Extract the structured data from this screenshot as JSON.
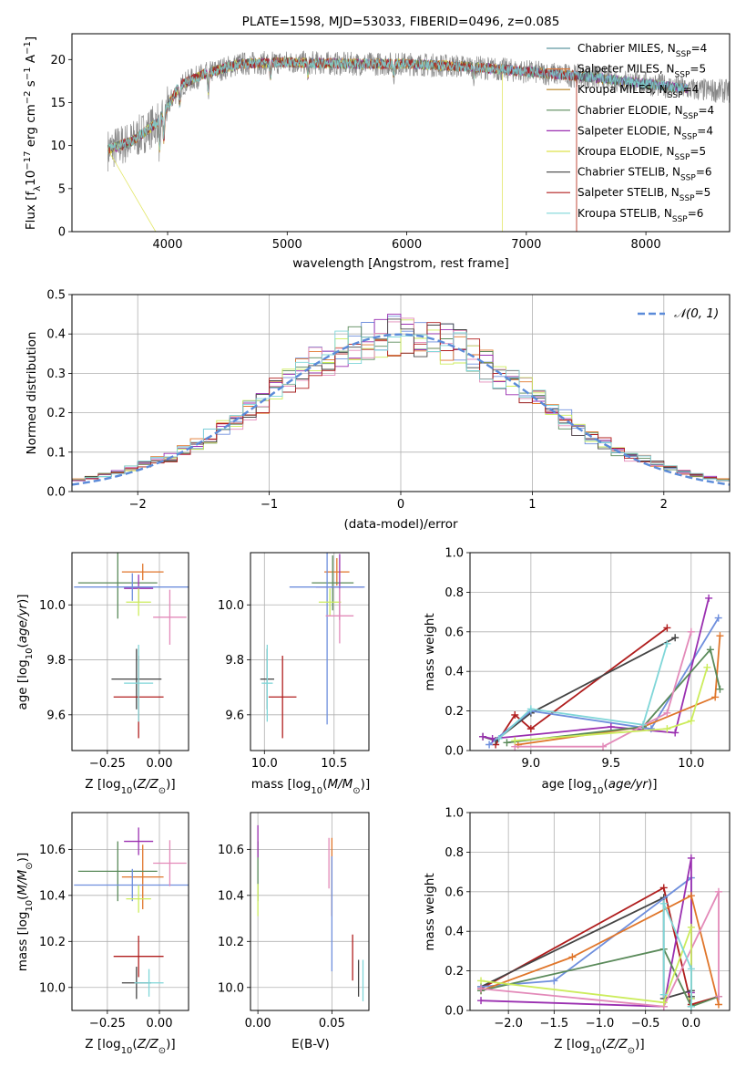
{
  "title": "PLATE=1598, MJD=53033, FIBERID=0496, z=0.085",
  "colors": {
    "chabrier_miles": "#5f97a0",
    "salpeter_miles": "#de7a3b",
    "kroupa_miles": "#b8821d",
    "chabrier_elodie": "#5a8a5a",
    "salpeter_elodie": "#9a2fb0",
    "kroupa_elodie": "#dde24a",
    "chabrier_stelib": "#555555",
    "salpeter_stelib": "#b01e1e",
    "kroupa_stelib": "#7fd6d8",
    "blue": "#6f8fdd",
    "pink": "#e38ab9",
    "orange": "#e0762b",
    "green": "#5a8a5a",
    "purple": "#9a2fb0",
    "yellow": "#ccec5c",
    "dark": "#444444",
    "red": "#b01e1e",
    "cyan": "#7fd6d8",
    "gauss": "#5b8bd9"
  },
  "chart_data": [
    {
      "id": "spectrum",
      "type": "line",
      "title": "PLATE=1598, MJD=53033, FIBERID=0496, z=0.085",
      "xlabel": "wavelength [Angstrom, rest frame]",
      "ylabel": "Flux [f_λ10^-17 erg cm^-2 s^-1 A^-1]",
      "xlim": [
        3200,
        8700
      ],
      "ylim": [
        0,
        23
      ],
      "xticks": [
        "4000",
        "5000",
        "6000",
        "7000",
        "8000"
      ],
      "yticks": [
        "0",
        "5",
        "10",
        "15",
        "20"
      ],
      "legend_position": "upper-right",
      "legend": [
        {
          "label": "Chabrier MILES, N",
          "sub": "SSP",
          "tail": "=4",
          "color": "chabrier_miles"
        },
        {
          "label": "Salpeter MILES, N",
          "sub": "SSP",
          "tail": "=5",
          "color": "salpeter_miles"
        },
        {
          "label": "Kroupa MILES, N",
          "sub": "SSP",
          "tail": "=4",
          "color": "kroupa_miles"
        },
        {
          "label": "Chabrier ELODIE, N",
          "sub": "SSP",
          "tail": "=4",
          "color": "chabrier_elodie"
        },
        {
          "label": "Salpeter ELODIE, N",
          "sub": "SSP",
          "tail": "=4",
          "color": "salpeter_elodie"
        },
        {
          "label": "Kroupa ELODIE, N",
          "sub": "SSP",
          "tail": "=5",
          "color": "kroupa_elodie"
        },
        {
          "label": "Chabrier STELIB, N",
          "sub": "SSP",
          "tail": "=6",
          "color": "chabrier_stelib"
        },
        {
          "label": "Salpeter STELIB, N",
          "sub": "SSP",
          "tail": "=5",
          "color": "salpeter_stelib"
        },
        {
          "label": "Kroupa STELIB, N",
          "sub": "SSP",
          "tail": "=6",
          "color": "kroupa_stelib"
        }
      ],
      "continuum": [
        [
          3500,
          9.5
        ],
        [
          3700,
          10.5
        ],
        [
          3900,
          12.5
        ],
        [
          4000,
          14.5
        ],
        [
          4100,
          17.0
        ],
        [
          4300,
          18.3
        ],
        [
          4600,
          19.5
        ],
        [
          5000,
          19.7
        ],
        [
          5500,
          19.5
        ],
        [
          6000,
          19.5
        ],
        [
          6500,
          19.2
        ],
        [
          7000,
          18.6
        ],
        [
          7500,
          18.0
        ],
        [
          8000,
          17.2
        ],
        [
          8400,
          16.5
        ],
        [
          8700,
          16.3
        ]
      ],
      "data_range": [
        3500,
        8700
      ],
      "model_range": [
        3500,
        8350
      ]
    },
    {
      "id": "residuals",
      "type": "histogram",
      "xlabel": "(data-model)/error",
      "ylabel": "Normed distribution",
      "xlim": [
        -2.5,
        2.5
      ],
      "ylim": [
        0,
        0.5
      ],
      "xticks": [
        "−2",
        "−1",
        "0",
        "1",
        "2"
      ],
      "yticks": [
        "0.0",
        "0.1",
        "0.2",
        "0.3",
        "0.4",
        "0.5"
      ],
      "legend": [
        {
          "label": "𝒩(0, 1)",
          "color": "gauss"
        }
      ],
      "legend_position": "upper-right",
      "bin_width": 0.1,
      "series_colors": [
        "blue",
        "orange",
        "green",
        "purple",
        "yellow",
        "pink",
        "dark",
        "red",
        "cyan"
      ]
    },
    {
      "id": "age_vs_Z",
      "type": "errorbar",
      "xlabel": "Z [log10(Z/Z⊙)]",
      "ylabel": "age [log10(age/yr)]",
      "xlim": [
        -0.42,
        0.14
      ],
      "ylim": [
        9.47,
        10.19
      ],
      "xticks": [
        "−0.25",
        "0.00"
      ],
      "yticks": [
        "9.6",
        "9.8",
        "10.0"
      ],
      "points": [
        {
          "x": -0.08,
          "y": 10.12,
          "xerr": 0.1,
          "yerr": 0.03,
          "color": "orange"
        },
        {
          "x": -0.2,
          "y": 10.08,
          "xerr": 0.19,
          "yerr": 0.13,
          "color": "green"
        },
        {
          "x": -0.1,
          "y": 10.06,
          "xerr": 0.07,
          "yerr": 0.05,
          "color": "purple"
        },
        {
          "x": -0.13,
          "y": 10.065,
          "xerr": 0.28,
          "yerr": 0.05,
          "color": "blue"
        },
        {
          "x": -0.1,
          "y": 10.01,
          "xerr": 0.06,
          "yerr": 0.05,
          "color": "yellow"
        },
        {
          "x": 0.05,
          "y": 9.955,
          "xerr": 0.08,
          "yerr": 0.1,
          "color": "pink"
        },
        {
          "x": -0.11,
          "y": 9.73,
          "xerr": 0.12,
          "yerr": 0.11,
          "color": "dark"
        },
        {
          "x": -0.1,
          "y": 9.665,
          "xerr": 0.12,
          "yerr": 0.15,
          "color": "red"
        },
        {
          "x": -0.1,
          "y": 9.715,
          "xerr": 0.07,
          "yerr": 0.14,
          "color": "cyan"
        }
      ]
    },
    {
      "id": "age_vs_mass",
      "type": "errorbar",
      "xlabel": "mass [log10(M/M⊙)]",
      "ylabel": "",
      "xlim": [
        9.9,
        10.75
      ],
      "ylim": [
        9.47,
        10.19
      ],
      "xticks": [
        "10.0",
        "10.5"
      ],
      "yticks": [
        "9.6",
        "9.8",
        "10.0"
      ],
      "points": [
        {
          "x": 10.52,
          "y": 10.12,
          "xerr": 0.09,
          "yerr": 0.05,
          "color": "orange"
        },
        {
          "x": 10.49,
          "y": 10.08,
          "xerr": 0.15,
          "yerr": 0.1,
          "color": "green"
        },
        {
          "x": 10.54,
          "y": 10.065,
          "xerr": 0.17,
          "yerr": 0.12,
          "color": "purple"
        },
        {
          "x": 10.45,
          "y": 10.065,
          "xerr": 0.27,
          "yerr": 0.5,
          "color": "blue"
        },
        {
          "x": 10.47,
          "y": 10.01,
          "xerr": 0.08,
          "yerr": 0.05,
          "color": "yellow"
        },
        {
          "x": 10.54,
          "y": 9.96,
          "xerr": 0.1,
          "yerr": 0.1,
          "color": "pink"
        },
        {
          "x": 10.02,
          "y": 9.73,
          "xerr": 0.05,
          "yerr": 0.11,
          "color": "dark"
        },
        {
          "x": 10.13,
          "y": 9.665,
          "xerr": 0.1,
          "yerr": 0.15,
          "color": "red"
        },
        {
          "x": 10.02,
          "y": 9.715,
          "xerr": 0.04,
          "yerr": 0.14,
          "color": "cyan"
        }
      ]
    },
    {
      "id": "weight_vs_age",
      "type": "line",
      "xlabel": "age [log10(age/yr)]",
      "ylabel": "mass weight",
      "xlim": [
        8.62,
        10.24
      ],
      "ylim": [
        0,
        1
      ],
      "xticks": [
        "9.0",
        "9.5",
        "10.0"
      ],
      "yticks": [
        "0.0",
        "0.2",
        "0.4",
        "0.6",
        "0.8",
        "1.0"
      ],
      "grid": true,
      "series": [
        {
          "color": "red",
          "x": [
            8.78,
            8.9,
            9.0,
            9.85
          ],
          "y": [
            0.03,
            0.18,
            0.11,
            0.62
          ]
        },
        {
          "color": "dark",
          "x": [
            8.7,
            8.78,
            9.0,
            9.9
          ],
          "y": [
            0.07,
            0.05,
            0.19,
            0.57
          ]
        },
        {
          "color": "blue",
          "x": [
            8.74,
            9.0,
            9.75,
            10.17
          ],
          "y": [
            0.03,
            0.2,
            0.11,
            0.67
          ]
        },
        {
          "color": "purple",
          "x": [
            8.7,
            8.76,
            9.5,
            9.9,
            10.11
          ],
          "y": [
            0.07,
            0.06,
            0.12,
            0.09,
            0.77
          ]
        },
        {
          "color": "orange",
          "x": [
            8.92,
            9.7,
            10.15,
            10.18
          ],
          "y": [
            0.03,
            0.12,
            0.27,
            0.58
          ]
        },
        {
          "color": "green",
          "x": [
            8.85,
            9.7,
            10.12,
            10.18
          ],
          "y": [
            0.04,
            0.12,
            0.51,
            0.31
          ]
        },
        {
          "color": "pink",
          "x": [
            8.9,
            9.45,
            9.85,
            10.0
          ],
          "y": [
            0.02,
            0.02,
            0.19,
            0.6
          ]
        },
        {
          "color": "yellow",
          "x": [
            8.9,
            9.85,
            10.0,
            10.1
          ],
          "y": [
            0.05,
            0.11,
            0.15,
            0.42
          ]
        },
        {
          "color": "cyan",
          "x": [
            8.8,
            9.0,
            9.7,
            9.85
          ],
          "y": [
            0.06,
            0.21,
            0.13,
            0.54
          ]
        }
      ]
    },
    {
      "id": "mass_vs_Z",
      "type": "errorbar",
      "xlabel": "Z [log10(Z/Z⊙)]",
      "ylabel": "mass [log10(M/M⊙)]",
      "xlim": [
        -0.42,
        0.14
      ],
      "ylim": [
        9.9,
        10.76
      ],
      "xticks": [
        "−0.25",
        "0.00"
      ],
      "yticks": [
        "10.0",
        "10.2",
        "10.4",
        "10.6"
      ],
      "points": [
        {
          "x": -0.08,
          "y": 10.48,
          "xerr": 0.1,
          "yerr": 0.14,
          "color": "orange"
        },
        {
          "x": -0.2,
          "y": 10.505,
          "xerr": 0.19,
          "yerr": 0.13,
          "color": "green"
        },
        {
          "x": -0.1,
          "y": 10.635,
          "xerr": 0.07,
          "yerr": 0.06,
          "color": "purple"
        },
        {
          "x": -0.13,
          "y": 10.445,
          "xerr": 0.28,
          "yerr": 0.07,
          "color": "blue"
        },
        {
          "x": -0.1,
          "y": 10.385,
          "xerr": 0.06,
          "yerr": 0.06,
          "color": "yellow"
        },
        {
          "x": 0.05,
          "y": 10.54,
          "xerr": 0.08,
          "yerr": 0.1,
          "color": "pink"
        },
        {
          "x": -0.11,
          "y": 10.02,
          "xerr": 0.07,
          "yerr": 0.07,
          "color": "dark"
        },
        {
          "x": -0.1,
          "y": 10.135,
          "xerr": 0.12,
          "yerr": 0.09,
          "color": "red"
        },
        {
          "x": -0.05,
          "y": 10.02,
          "xerr": 0.07,
          "yerr": 0.06,
          "color": "cyan"
        }
      ]
    },
    {
      "id": "mass_vs_EBV",
      "type": "errorbar",
      "xlabel": "E(B-V)",
      "ylabel": "",
      "xlim": [
        -0.005,
        0.075
      ],
      "ylim": [
        9.9,
        10.76
      ],
      "xticks": [
        "0.00",
        "0.05"
      ],
      "yticks": [
        "10.0",
        "10.2",
        "10.4",
        "10.6"
      ],
      "points": [
        {
          "x": 0.05,
          "y": 10.48,
          "xerr": 0,
          "yerr": 0.17,
          "color": "orange"
        },
        {
          "x": 0.0,
          "y": 10.505,
          "xerr": 0,
          "yerr": 0.13,
          "color": "green"
        },
        {
          "x": 0.0,
          "y": 10.635,
          "xerr": 0,
          "yerr": 0.07,
          "color": "purple"
        },
        {
          "x": 0.05,
          "y": 10.32,
          "xerr": 0,
          "yerr": 0.25,
          "color": "blue"
        },
        {
          "x": 0.0,
          "y": 10.38,
          "xerr": 0,
          "yerr": 0.07,
          "color": "yellow"
        },
        {
          "x": 0.048,
          "y": 10.54,
          "xerr": 0,
          "yerr": 0.11,
          "color": "pink"
        },
        {
          "x": 0.068,
          "y": 10.04,
          "xerr": 0,
          "yerr": 0.08,
          "color": "dark"
        },
        {
          "x": 0.064,
          "y": 10.13,
          "xerr": 0,
          "yerr": 0.1,
          "color": "red"
        },
        {
          "x": 0.071,
          "y": 10.03,
          "xerr": 0,
          "yerr": 0.09,
          "color": "cyan"
        }
      ]
    },
    {
      "id": "weight_vs_Z",
      "type": "line",
      "xlabel": "Z [log10(Z/Z⊙)]",
      "ylabel": "mass weight",
      "xlim": [
        -2.42,
        0.42
      ],
      "ylim": [
        0,
        1
      ],
      "xticks": [
        "−2.0",
        "−1.5",
        "−1.0",
        "−0.5",
        "0.0"
      ],
      "yticks": [
        "0.0",
        "0.2",
        "0.4",
        "0.6",
        "0.8",
        "1.0"
      ],
      "grid": true,
      "series": [
        {
          "color": "red",
          "x": [
            -2.3,
            -0.3,
            0.0,
            0.3
          ],
          "y": [
            0.11,
            0.62,
            0.03,
            0.07
          ]
        },
        {
          "color": "dark",
          "x": [
            -2.3,
            -0.3,
            -0.3,
            0.0,
            0.0
          ],
          "y": [
            0.12,
            0.57,
            0.06,
            0.1,
            0.07
          ]
        },
        {
          "color": "blue",
          "x": [
            -2.3,
            -1.5,
            0.0,
            0.0
          ],
          "y": [
            0.12,
            0.15,
            0.67,
            0.06
          ]
        },
        {
          "color": "purple",
          "x": [
            -2.3,
            -0.3,
            0.0,
            0.0
          ],
          "y": [
            0.05,
            0.02,
            0.77,
            0.09
          ]
        },
        {
          "color": "orange",
          "x": [
            -2.3,
            -1.3,
            0.0,
            0.3
          ],
          "y": [
            0.1,
            0.27,
            0.58,
            0.03
          ]
        },
        {
          "color": "green",
          "x": [
            -2.3,
            -0.3,
            0.0,
            0.3
          ],
          "y": [
            0.1,
            0.31,
            0.02,
            0.07
          ]
        },
        {
          "color": "pink",
          "x": [
            -2.3,
            -0.3,
            0.3,
            0.3
          ],
          "y": [
            0.11,
            0.02,
            0.6,
            0.07
          ]
        },
        {
          "color": "yellow",
          "x": [
            -2.3,
            -0.3,
            0.0,
            0.0
          ],
          "y": [
            0.15,
            0.04,
            0.42,
            0.06
          ]
        },
        {
          "color": "cyan",
          "x": [
            -0.3,
            -0.3,
            0.0,
            0.0
          ],
          "y": [
            0.08,
            0.54,
            0.21,
            0.02
          ]
        }
      ]
    }
  ]
}
